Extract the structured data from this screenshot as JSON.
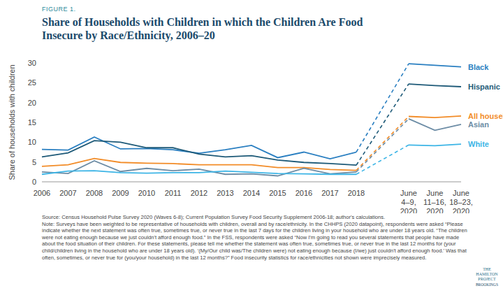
{
  "chart_data": {
    "type": "line",
    "figure_label": "FIGURE 1.",
    "title": "Share of Households with Children in which the Children Are Food Insecure by Race/Ethnicity, 2006–20",
    "ylabel": "Share of households with children",
    "categories": [
      "2006",
      "2007",
      "2008",
      "2009",
      "2010",
      "2011",
      "2012",
      "2013",
      "2014",
      "2015",
      "2016",
      "2017",
      "2018",
      null,
      "June 4–9, 2020",
      "June 11–16, 2020",
      "June 18–23, 2020"
    ],
    "series": [
      {
        "name": "Black",
        "color": "#2a7fc1",
        "values": [
          8.2,
          8.0,
          11.3,
          8.3,
          8.4,
          8.1,
          7.2,
          8.1,
          9.2,
          6.1,
          7.5,
          5.8,
          7.5,
          null,
          29.8,
          29.4,
          29.0
        ]
      },
      {
        "name": "Hispanic",
        "color": "#1e5a78",
        "values": [
          6.3,
          7.3,
          10.4,
          10.0,
          8.6,
          8.6,
          7.0,
          6.3,
          6.6,
          5.5,
          4.9,
          4.6,
          4.2,
          null,
          24.7,
          24.3,
          24.0
        ]
      },
      {
        "name": "All households",
        "color": "#f28c28",
        "values": [
          3.9,
          4.3,
          5.9,
          4.9,
          4.7,
          4.6,
          4.3,
          4.3,
          4.3,
          3.6,
          3.6,
          3.1,
          2.9,
          null,
          16.5,
          16.2,
          16.6
        ]
      },
      {
        "name": "Asian",
        "color": "#6c8ca5",
        "values": [
          2.5,
          2.1,
          5.3,
          2.6,
          3.4,
          2.8,
          3.2,
          1.9,
          2.0,
          1.5,
          3.4,
          2.0,
          2.5,
          null,
          15.9,
          13.0,
          14.5
        ]
      },
      {
        "name": "White",
        "color": "#3db5e6",
        "values": [
          1.9,
          2.7,
          2.8,
          2.3,
          2.2,
          2.3,
          2.3,
          2.7,
          2.4,
          2.1,
          2.0,
          1.9,
          1.9,
          null,
          9.3,
          9.1,
          9.5
        ]
      }
    ],
    "ylim": [
      0,
      30
    ],
    "yticks": [
      0,
      5,
      10,
      15,
      20,
      25,
      30
    ],
    "grid": false,
    "source": "Source: Census Household Pulse Survey 2020 (Waves 6-8); Current Population Survey Food Security Supplement 2006-18; author's calculations.",
    "note": "Note: Surveys have been weighted to be representative of households with children, overall and by race/ethnicity. In the CHHPS (2020 datapoint), respondents were asked “Please indicate whether the next statement was often true, sometimes true, or never true in the last 7 days for the children living in your household who are under 18 years old. “The children were not eating enough because we just couldn't afford enough food.” In the FSS, respondents were asked “Now I'm going to read you several statements that people have made about the food situation of their children. For these statements, please tell me whether the statement was often true, sometimes true, or never true in the last 12 months for (your child/children living in the household who are under 18 years old). ‘(My/Our child was/The children were) not eating enough because (I/we) just couldn't afford enough food.’ Was that often, sometimes, or never true for (you/your household) in the last 12 months?” Food insecurity statistics for race/ethnicities not shown were imprecisely measured.",
    "logo": [
      "THE HAMILTON PROJECT",
      "BROOKINGS"
    ]
  }
}
